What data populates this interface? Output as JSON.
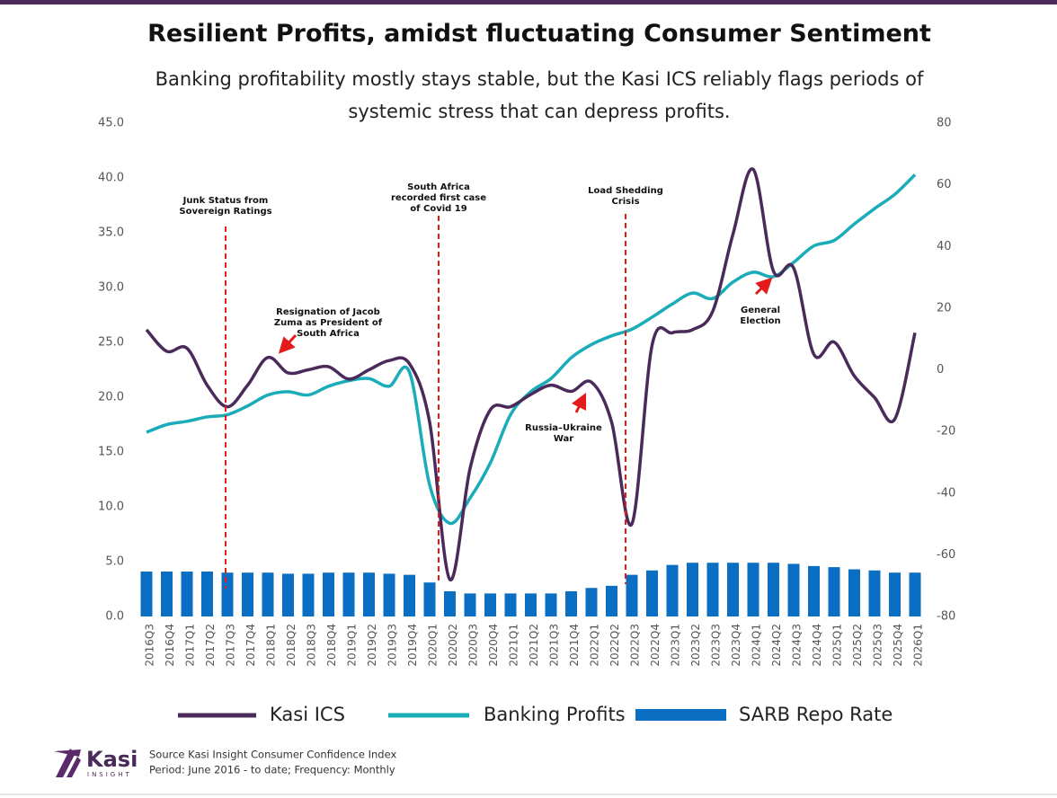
{
  "chart_data": {
    "type": "combo",
    "title": "Resilient Profits, amidst fluctuating Consumer Sentiment",
    "subtitle": "Banking profitability mostly stays stable, but the Kasi ICS reliably flags periods of systemic stress that can depress profits.",
    "categories": [
      "2016Q3",
      "2016Q4",
      "2017Q1",
      "2017Q2",
      "2017Q3",
      "2017Q4",
      "2018Q1",
      "2018Q2",
      "2018Q3",
      "2018Q4",
      "2019Q1",
      "2019Q2",
      "2019Q3",
      "2019Q4",
      "2020Q1",
      "2020Q2",
      "2020Q3",
      "2020Q4",
      "2021Q1",
      "2021Q2",
      "2021Q3",
      "2021Q4",
      "2022Q1",
      "2022Q2",
      "2022Q3",
      "2022Q4",
      "2023Q1",
      "2023Q2",
      "2023Q3",
      "2023Q4",
      "2024Q1",
      "2024Q2",
      "2024Q3",
      "2024Q4",
      "2025Q1",
      "2025Q2",
      "2025Q3",
      "2025Q4",
      "2026Q1"
    ],
    "series": [
      {
        "name": "Kasi ICS",
        "type": "line",
        "axis": "y2",
        "color": "#4a2a5a",
        "values": [
          13,
          6,
          7,
          -5,
          -12,
          -5,
          4,
          -1,
          0,
          1,
          -3,
          0,
          3,
          2,
          -17,
          -68,
          -32,
          -13,
          -12,
          -8,
          -5,
          -7,
          -4,
          -17,
          -50,
          8,
          12,
          13,
          19,
          44,
          65,
          32,
          33,
          5,
          9,
          -2,
          -9,
          -16,
          12
        ]
      },
      {
        "name": "Banking Profits",
        "type": "line",
        "color": "#1aacb8",
        "values": [
          16.8,
          17.5,
          17.8,
          18.2,
          18.4,
          19.2,
          20.2,
          20.5,
          20.2,
          21.0,
          21.5,
          21.7,
          21.0,
          22.3,
          12.0,
          8.5,
          10.8,
          14.0,
          18.4,
          20.5,
          21.7,
          23.6,
          24.8,
          25.6,
          26.2,
          27.3,
          28.5,
          29.5,
          29.0,
          30.5,
          31.4,
          31.0,
          32.3,
          33.8,
          34.3,
          35.8,
          37.2,
          38.5,
          40.3
        ]
      },
      {
        "name": "SARB Repo Rate",
        "type": "bar",
        "color": "#0a6fc2",
        "values": [
          4.1,
          4.1,
          4.1,
          4.1,
          4.0,
          4.0,
          4.0,
          3.9,
          3.9,
          4.0,
          4.0,
          4.0,
          3.9,
          3.8,
          3.1,
          2.3,
          2.1,
          2.1,
          2.1,
          2.1,
          2.1,
          2.3,
          2.6,
          2.8,
          3.8,
          4.2,
          4.7,
          4.9,
          4.9,
          4.9,
          4.9,
          4.9,
          4.8,
          4.6,
          4.5,
          4.3,
          4.2,
          4.0,
          4.0
        ]
      }
    ],
    "ylim": [
      0,
      45
    ],
    "yticks": [
      {
        "value": 0,
        "label": "0.0"
      },
      {
        "value": 5,
        "label": "5.0"
      },
      {
        "value": 10,
        "label": "10.0"
      },
      {
        "value": 15,
        "label": "15.0"
      },
      {
        "value": 20,
        "label": "20.0"
      },
      {
        "value": 25,
        "label": "25.0"
      },
      {
        "value": 30,
        "label": "30.0"
      },
      {
        "value": 35,
        "label": "35.0"
      },
      {
        "value": 40,
        "label": "40.0"
      },
      {
        "value": 45,
        "label": "45.0"
      }
    ],
    "y2lim": [
      -80,
      80
    ],
    "y2ticks": [
      -80,
      -60,
      -40,
      -20,
      0,
      20,
      40,
      60,
      80
    ],
    "annotations": [
      {
        "lines": [
          "Junk Status from",
          "Sovereign Ratings"
        ]
      },
      {
        "lines": [
          "South Africa",
          "recorded first case",
          "of Covid 19"
        ]
      },
      {
        "lines": [
          "Load Shedding",
          "Crisis"
        ]
      },
      {
        "lines": [
          "Resignation of Jacob",
          "Zuma as President of",
          "South Africa"
        ]
      },
      {
        "lines": [
          "Russia–Ukraine",
          "War"
        ]
      },
      {
        "lines": [
          "General",
          "Election"
        ]
      }
    ],
    "legend": "bottom"
  },
  "footer": {
    "logo": "Kasi",
    "logo_sub": "INSIGHT",
    "source": "Source Kasi Insight Consumer Confidence Index",
    "period": "Period: June 2016 - to date; Frequency: Monthly"
  }
}
